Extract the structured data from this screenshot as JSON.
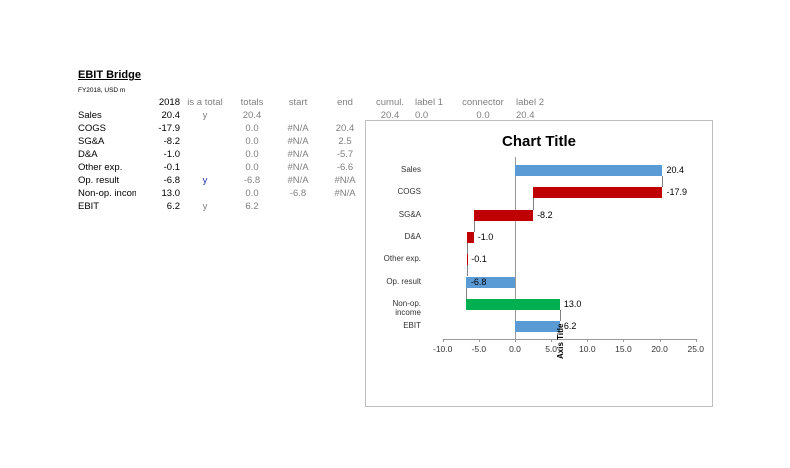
{
  "sheet": {
    "title": "EBIT Bridge",
    "subtitle": "FY2018, USD m",
    "headers": [
      "2018",
      "is a total",
      "totals",
      "start",
      "end",
      "cumul.",
      "label 1",
      "connector",
      "label 2"
    ],
    "rows": [
      {
        "label": "Sales",
        "value": "20.4",
        "is_total": "y",
        "totals": "20.4",
        "start": "",
        "end": ""
      },
      {
        "label": "COGS",
        "value": "-17.9",
        "is_total": "",
        "totals": "0.0",
        "start": "#N/A",
        "end": "20.4"
      },
      {
        "label": "SG&A",
        "value": "-8.2",
        "is_total": "",
        "totals": "0.0",
        "start": "#N/A",
        "end": "2.5"
      },
      {
        "label": "D&A",
        "value": "-1.0",
        "is_total": "",
        "totals": "0.0",
        "start": "#N/A",
        "end": "-5.7"
      },
      {
        "label": "Other exp.",
        "value": "-0.1",
        "is_total": "",
        "totals": "0.0",
        "start": "#N/A",
        "end": "-6.6"
      },
      {
        "label": "Op. result",
        "value": "-6.8",
        "is_total": "y",
        "totals": "-6.8",
        "start": "#N/A",
        "end": "#N/A"
      },
      {
        "label": "Non-op. incom",
        "value": "13.0",
        "is_total": "",
        "totals": "0.0",
        "start": "-6.8",
        "end": "#N/A"
      },
      {
        "label": "EBIT",
        "value": "6.2",
        "is_total": "y",
        "totals": "6.2",
        "start": "",
        "end": ""
      }
    ],
    "extra_row": {
      "cumul": "20.4",
      "label1": "0.0",
      "connector": "0.0",
      "label2": "20.4"
    }
  },
  "chart_data": {
    "type": "bar",
    "orientation": "horizontal",
    "subtype": "waterfall",
    "title": "Chart Title",
    "xlabel": "Axis Title",
    "ylabel": "",
    "categories": [
      "Sales",
      "COGS",
      "SG&A",
      "D&A",
      "Other exp.",
      "Op. result",
      "Non-op. income",
      "EBIT"
    ],
    "values": [
      20.4,
      -17.9,
      -8.2,
      -1.0,
      -0.1,
      -6.8,
      13.0,
      6.2
    ],
    "labels": [
      "20.4",
      "-17.9",
      "-8.2",
      "-1.0",
      "-0.1",
      "-6.8",
      "13.0",
      "6.2"
    ],
    "bar_ranges": [
      [
        0,
        20.4
      ],
      [
        2.5,
        20.4
      ],
      [
        -5.7,
        2.5
      ],
      [
        -6.6,
        -5.7
      ],
      [
        -6.7,
        -6.6
      ],
      [
        -6.8,
        0
      ],
      [
        -6.8,
        6.2
      ],
      [
        0,
        6.2
      ]
    ],
    "colors": [
      "#5b9bd5",
      "#c00000",
      "#c00000",
      "#c00000",
      "#c00000",
      "#5b9bd5",
      "#00b050",
      "#5b9bd5"
    ],
    "xlim": [
      -10,
      25
    ],
    "xticks": [
      "-10.0",
      "-5.0",
      "0.0",
      "5.0",
      "10.0",
      "15.0",
      "20.0",
      "25.0"
    ],
    "grid": false,
    "legend": "none"
  }
}
